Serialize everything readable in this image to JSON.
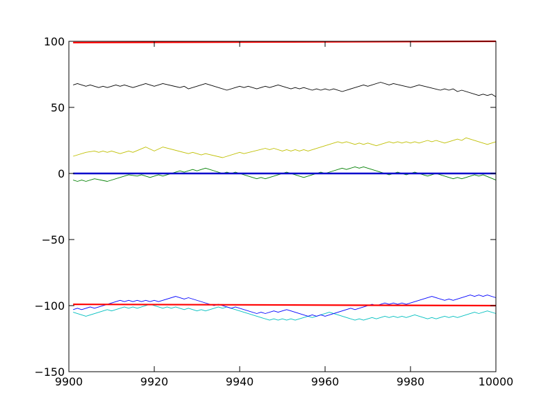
{
  "chart_data": {
    "type": "line",
    "title": "",
    "xlabel": "",
    "ylabel": "",
    "xlim": [
      9900,
      10000
    ],
    "ylim": [
      -150,
      100
    ],
    "grid": false,
    "x_ticks": [
      9900,
      9920,
      9940,
      9960,
      9980,
      10000
    ],
    "y_ticks": [
      100,
      50,
      0,
      -50,
      -100,
      -150
    ],
    "x_tick_labels": [
      "9900",
      "9920",
      "9940",
      "9960",
      "9980",
      "10000"
    ],
    "y_tick_labels": [
      "100",
      "50",
      "0",
      "−50",
      "−100",
      "−150"
    ],
    "series": [
      {
        "color": "#000000",
        "stroke": 0.9,
        "points": [
          [
            9901,
            67
          ],
          [
            9902,
            68
          ],
          [
            9904,
            66
          ],
          [
            9905,
            67
          ],
          [
            9907,
            65
          ],
          [
            9908,
            66
          ],
          [
            9909,
            65
          ],
          [
            9911,
            67
          ],
          [
            9912,
            66
          ],
          [
            9913,
            67
          ],
          [
            9915,
            65
          ],
          [
            9918,
            68
          ],
          [
            9920,
            66
          ],
          [
            9922,
            68
          ],
          [
            9926,
            65
          ],
          [
            9927,
            66
          ],
          [
            9928,
            64
          ],
          [
            9932,
            68
          ],
          [
            9937,
            63
          ],
          [
            9940,
            66
          ],
          [
            9941,
            65
          ],
          [
            9942,
            66
          ],
          [
            9944,
            64
          ],
          [
            9946,
            66
          ],
          [
            9947,
            65
          ],
          [
            9949,
            67
          ],
          [
            9952,
            64
          ],
          [
            9953,
            65
          ],
          [
            9954,
            64
          ],
          [
            9955,
            65
          ],
          [
            9957,
            63
          ],
          [
            9958,
            64
          ],
          [
            9959,
            63
          ],
          [
            9960,
            64
          ],
          [
            9961,
            63
          ],
          [
            9962,
            64
          ],
          [
            9964,
            62
          ],
          [
            9969,
            67
          ],
          [
            9970,
            66
          ],
          [
            9973,
            69
          ],
          [
            9975,
            67
          ],
          [
            9976,
            68
          ],
          [
            9980,
            65
          ],
          [
            9982,
            67
          ],
          [
            9987,
            63
          ],
          [
            9988,
            64
          ],
          [
            9989,
            63
          ],
          [
            9990,
            64
          ],
          [
            9991,
            62
          ],
          [
            9992,
            63
          ],
          [
            9996,
            59
          ],
          [
            9997,
            60
          ],
          [
            9998,
            59
          ],
          [
            9999,
            60
          ],
          [
            10000,
            58
          ]
        ]
      },
      {
        "color": "#bfbf00",
        "stroke": 0.9,
        "points": [
          [
            9901,
            13
          ],
          [
            9904,
            16
          ],
          [
            9906,
            17
          ],
          [
            9907,
            16
          ],
          [
            9908,
            17
          ],
          [
            9909,
            16
          ],
          [
            9910,
            17
          ],
          [
            9912,
            15
          ],
          [
            9914,
            17
          ],
          [
            9915,
            16
          ],
          [
            9918,
            20
          ],
          [
            9920,
            17
          ],
          [
            9922,
            20
          ],
          [
            9928,
            15
          ],
          [
            9929,
            16
          ],
          [
            9931,
            14
          ],
          [
            9932,
            15
          ],
          [
            9936,
            12
          ],
          [
            9940,
            16
          ],
          [
            9941,
            15
          ],
          [
            9946,
            19
          ],
          [
            9947,
            18
          ],
          [
            9948,
            19
          ],
          [
            9950,
            17
          ],
          [
            9951,
            18
          ],
          [
            9952,
            17
          ],
          [
            9953,
            18
          ],
          [
            9954,
            17
          ],
          [
            9955,
            18
          ],
          [
            9956,
            17
          ],
          [
            9963,
            24
          ],
          [
            9964,
            23
          ],
          [
            9965,
            24
          ],
          [
            9967,
            22
          ],
          [
            9968,
            23
          ],
          [
            9969,
            22
          ],
          [
            9970,
            23
          ],
          [
            9972,
            21
          ],
          [
            9975,
            24
          ],
          [
            9976,
            23
          ],
          [
            9977,
            24
          ],
          [
            9978,
            23
          ],
          [
            9979,
            24
          ],
          [
            9980,
            23
          ],
          [
            9981,
            24
          ],
          [
            9982,
            23
          ],
          [
            9984,
            25
          ],
          [
            9985,
            24
          ],
          [
            9986,
            25
          ],
          [
            9988,
            23
          ],
          [
            9991,
            26
          ],
          [
            9992,
            25
          ],
          [
            9993,
            27
          ],
          [
            9998,
            22
          ],
          [
            10000,
            24
          ]
        ]
      },
      {
        "color": "#007f00",
        "stroke": 0.9,
        "points": [
          [
            9901,
            -5
          ],
          [
            9902,
            -6
          ],
          [
            9903,
            -5
          ],
          [
            9904,
            -6
          ],
          [
            9906,
            -4
          ],
          [
            9909,
            -6
          ],
          [
            9914,
            -1
          ],
          [
            9916,
            -2
          ],
          [
            9917,
            -1
          ],
          [
            9919,
            -3
          ],
          [
            9921,
            -1
          ],
          [
            9922,
            -2
          ],
          [
            9925,
            1
          ],
          [
            9926,
            2
          ],
          [
            9927,
            1
          ],
          [
            9929,
            3
          ],
          [
            9930,
            2
          ],
          [
            9932,
            4
          ],
          [
            9936,
            0
          ],
          [
            9937,
            1
          ],
          [
            9938,
            0
          ],
          [
            9939,
            1
          ],
          [
            9940,
            0
          ],
          [
            9944,
            -4
          ],
          [
            9945,
            -3
          ],
          [
            9946,
            -4
          ],
          [
            9951,
            1
          ],
          [
            9955,
            -3
          ],
          [
            9959,
            1
          ],
          [
            9960,
            0
          ],
          [
            9964,
            4
          ],
          [
            9965,
            3
          ],
          [
            9967,
            5
          ],
          [
            9968,
            4
          ],
          [
            9969,
            5
          ],
          [
            9975,
            -1
          ],
          [
            9977,
            1
          ],
          [
            9979,
            -1
          ],
          [
            9981,
            1
          ],
          [
            9983,
            -1
          ],
          [
            9984,
            -2
          ],
          [
            9986,
            0
          ],
          [
            9990,
            -4
          ],
          [
            9991,
            -3
          ],
          [
            9992,
            -4
          ],
          [
            9993,
            -3
          ],
          [
            9995,
            -1
          ],
          [
            9996,
            -2
          ],
          [
            9997,
            -1
          ],
          [
            10000,
            -5
          ]
        ]
      },
      {
        "color": "#00bfbf",
        "stroke": 0.9,
        "points": [
          [
            9901,
            -105
          ],
          [
            9904,
            -108
          ],
          [
            9909,
            -103
          ],
          [
            9910,
            -104
          ],
          [
            9913,
            -101
          ],
          [
            9914,
            -102
          ],
          [
            9915,
            -101
          ],
          [
            9916,
            -102
          ],
          [
            9919,
            -99
          ],
          [
            9922,
            -102
          ],
          [
            9923,
            -101
          ],
          [
            9924,
            -102
          ],
          [
            9925,
            -101
          ],
          [
            9927,
            -103
          ],
          [
            9928,
            -102
          ],
          [
            9930,
            -104
          ],
          [
            9931,
            -103
          ],
          [
            9932,
            -104
          ],
          [
            9933,
            -103
          ],
          [
            9935,
            -101
          ],
          [
            9936,
            -102
          ],
          [
            9937,
            -101
          ],
          [
            9945,
            -109
          ],
          [
            9947,
            -111
          ],
          [
            9948,
            -110
          ],
          [
            9949,
            -111
          ],
          [
            9950,
            -110
          ],
          [
            9951,
            -111
          ],
          [
            9952,
            -110
          ],
          [
            9953,
            -111
          ],
          [
            9956,
            -108
          ],
          [
            9957,
            -109
          ],
          [
            9961,
            -105
          ],
          [
            9967,
            -111
          ],
          [
            9968,
            -110
          ],
          [
            9969,
            -111
          ],
          [
            9971,
            -109
          ],
          [
            9972,
            -110
          ],
          [
            9974,
            -108
          ],
          [
            9975,
            -109
          ],
          [
            9976,
            -108
          ],
          [
            9977,
            -109
          ],
          [
            9978,
            -108
          ],
          [
            9979,
            -109
          ],
          [
            9981,
            -107
          ],
          [
            9984,
            -110
          ],
          [
            9985,
            -109
          ],
          [
            9986,
            -110
          ],
          [
            9988,
            -108
          ],
          [
            9989,
            -109
          ],
          [
            9990,
            -108
          ],
          [
            9991,
            -109
          ],
          [
            9995,
            -105
          ],
          [
            9996,
            -106
          ],
          [
            9998,
            -104
          ],
          [
            10000,
            -106
          ]
        ]
      },
      {
        "color": "#0000ff",
        "stroke": 0.9,
        "points": [
          [
            9901,
            -103
          ],
          [
            9902,
            -102
          ],
          [
            9903,
            -103
          ],
          [
            9905,
            -101
          ],
          [
            9906,
            -102
          ],
          [
            9907,
            -101
          ],
          [
            9910,
            -98
          ],
          [
            9912,
            -96
          ],
          [
            9913,
            -97
          ],
          [
            9914,
            -96
          ],
          [
            9915,
            -97
          ],
          [
            9916,
            -96
          ],
          [
            9917,
            -97
          ],
          [
            9918,
            -96
          ],
          [
            9919,
            -97
          ],
          [
            9920,
            -96
          ],
          [
            9921,
            -97
          ],
          [
            9925,
            -93
          ],
          [
            9927,
            -95
          ],
          [
            9928,
            -94
          ],
          [
            9934,
            -100
          ],
          [
            9935,
            -99
          ],
          [
            9938,
            -102
          ],
          [
            9939,
            -101
          ],
          [
            9944,
            -106
          ],
          [
            9945,
            -105
          ],
          [
            9946,
            -106
          ],
          [
            9948,
            -104
          ],
          [
            9949,
            -105
          ],
          [
            9951,
            -103
          ],
          [
            9952,
            -104
          ],
          [
            9956,
            -108
          ],
          [
            9957,
            -107
          ],
          [
            9958,
            -108
          ],
          [
            9959,
            -107
          ],
          [
            9960,
            -108
          ],
          [
            9966,
            -102
          ],
          [
            9967,
            -103
          ],
          [
            9971,
            -99
          ],
          [
            9972,
            -100
          ],
          [
            9974,
            -98
          ],
          [
            9975,
            -99
          ],
          [
            9976,
            -98
          ],
          [
            9977,
            -99
          ],
          [
            9978,
            -98
          ],
          [
            9979,
            -99
          ],
          [
            9985,
            -93
          ],
          [
            9988,
            -96
          ],
          [
            9989,
            -95
          ],
          [
            9990,
            -96
          ],
          [
            9994,
            -92
          ],
          [
            9995,
            -93
          ],
          [
            9996,
            -92
          ],
          [
            9997,
            -93
          ],
          [
            9998,
            -92
          ],
          [
            10000,
            -94
          ]
        ]
      },
      {
        "color": "#ff0000",
        "stroke": 2.2,
        "points": [
          [
            9901,
            99
          ],
          [
            10000,
            100
          ]
        ]
      },
      {
        "color": "#ff0000",
        "stroke": 2.2,
        "points": [
          [
            9901,
            -99
          ],
          [
            10000,
            -100
          ]
        ]
      },
      {
        "color": "#0000cc",
        "stroke": 2.6,
        "points": [
          [
            9901,
            0
          ],
          [
            10000,
            0
          ]
        ]
      }
    ]
  }
}
